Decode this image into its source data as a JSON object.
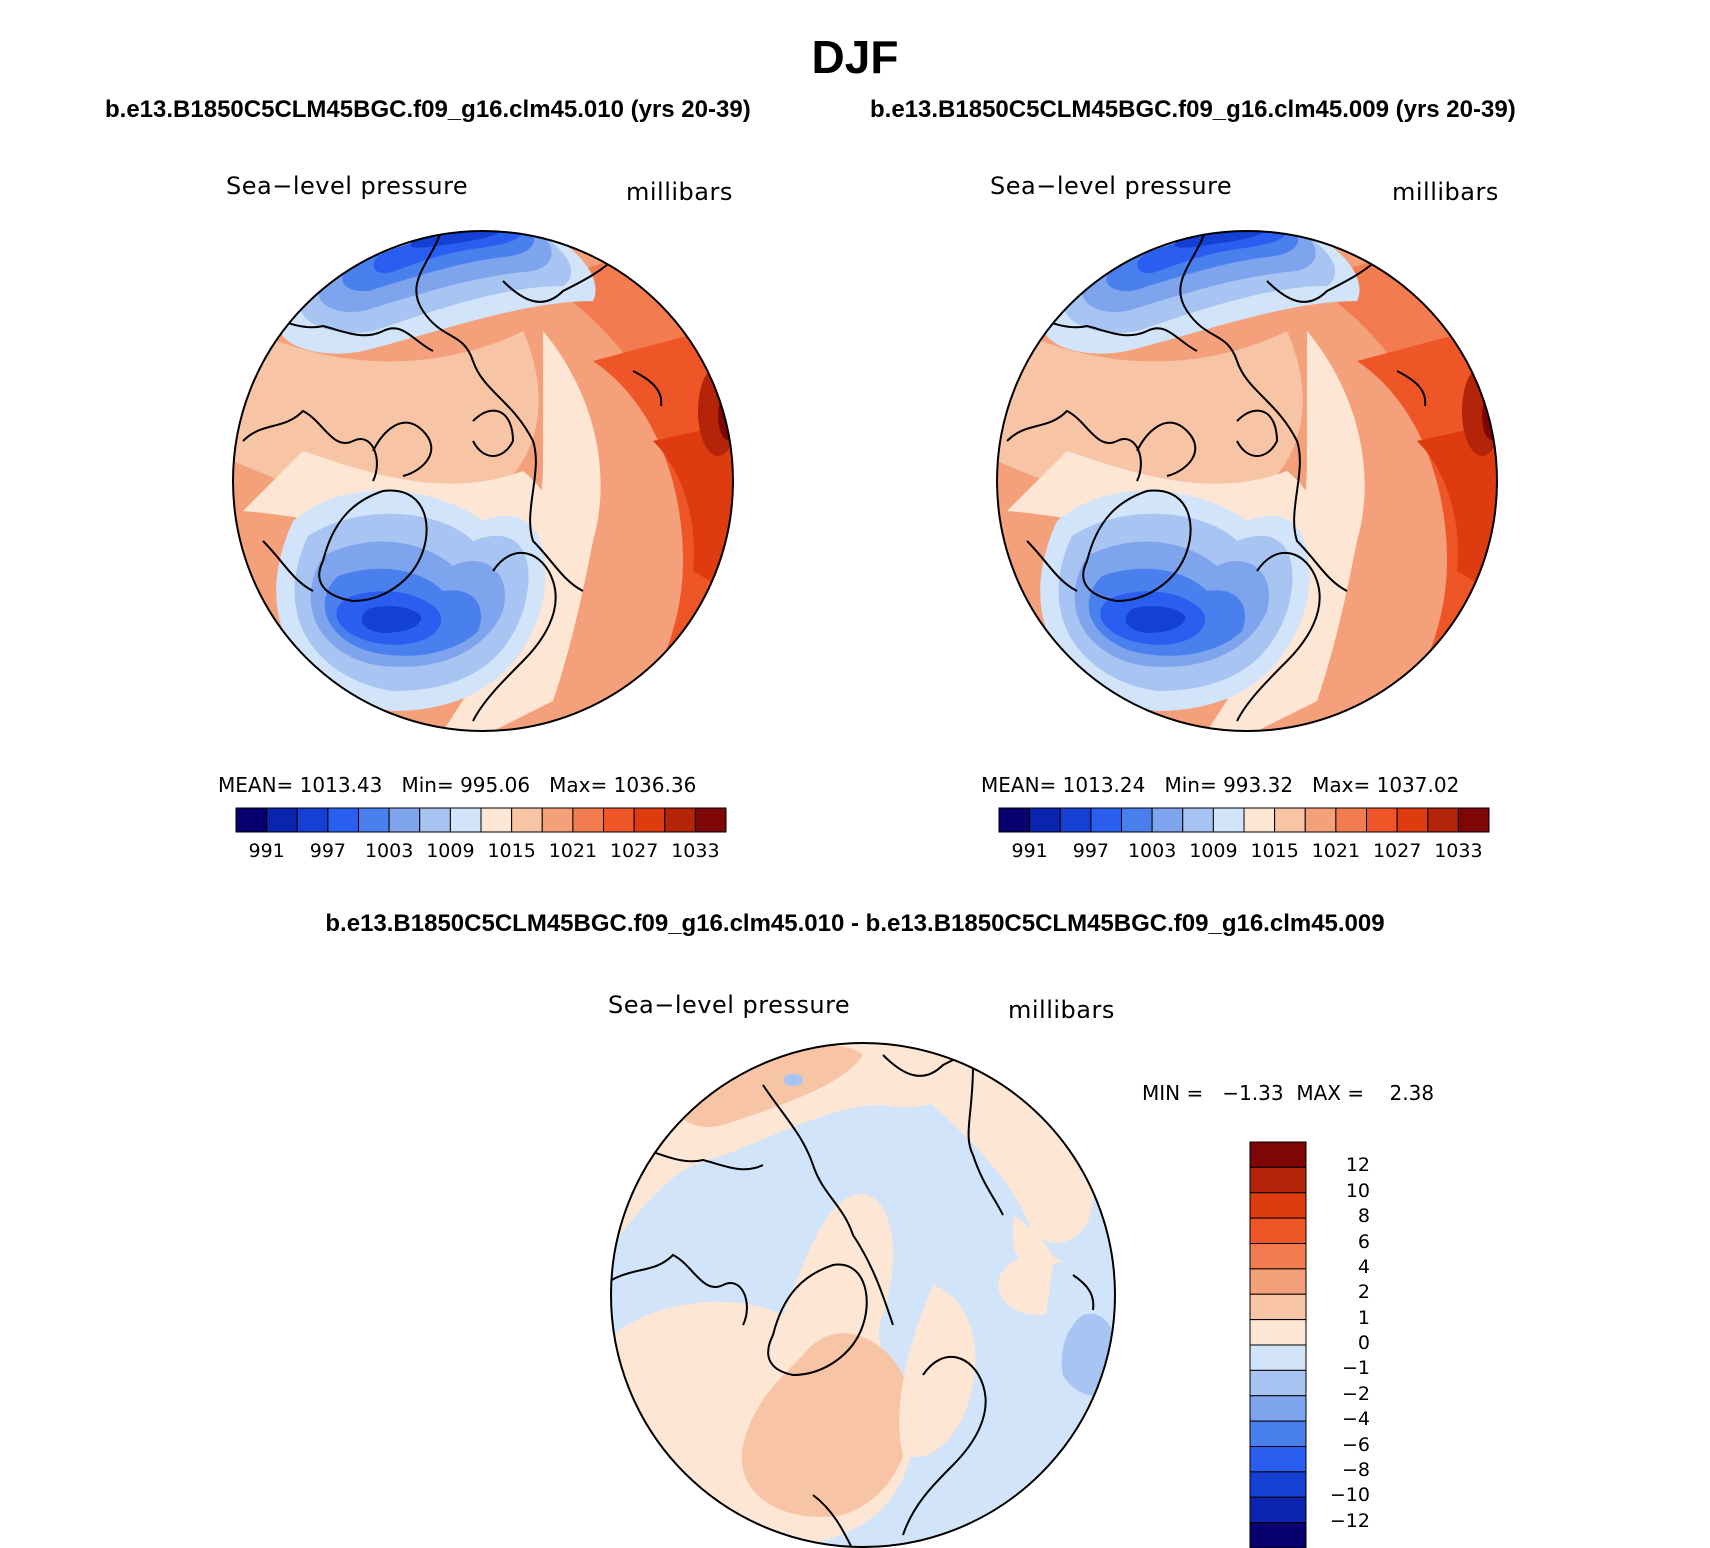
{
  "header": {
    "title": "DJF",
    "case_left": "b.e13.B1850C5CLM45BGC.f09_g16.clm45.010 (yrs 20-39)",
    "case_right": "b.e13.B1850C5CLM45BGC.f09_g16.clm45.009 (yrs 20-39)",
    "diff_title": "b.e13.B1850C5CLM45BGC.f09_g16.clm45.010 - b.e13.B1850C5CLM45BGC.f09_g16.clm45.009"
  },
  "panel_left": {
    "variable": "Sea−level pressure",
    "units": "millibars",
    "mean_label": "MEAN=",
    "mean_value": "1013.43",
    "min_label": "Min=",
    "min_value": "995.06",
    "max_label": "Max=",
    "max_value": "1036.36"
  },
  "panel_right": {
    "variable": "Sea−level pressure",
    "units": "millibars",
    "mean_label": "MEAN=",
    "mean_value": "1013.24",
    "min_label": "Min=",
    "min_value": "993.32",
    "max_label": "Max=",
    "max_value": "1037.02"
  },
  "panel_diff": {
    "variable": "Sea−level pressure",
    "units": "millibars",
    "min_label": "MIN =",
    "min_value": "−1.33",
    "max_label": "MAX =",
    "max_value": "2.38"
  },
  "colorbar_abs": {
    "colors": [
      "#08006e",
      "#0a24b0",
      "#1440d4",
      "#2a5ef0",
      "#4a80ee",
      "#7ea4ee",
      "#a8c4f2",
      "#d2e4fa",
      "#fde6d4",
      "#f8c4a6",
      "#f4a07a",
      "#f27c50",
      "#ee5628",
      "#de3c10",
      "#b42408",
      "#7e0606"
    ],
    "tick_labels": [
      "991",
      "997",
      "1003",
      "1009",
      "1015",
      "1021",
      "1027",
      "1033"
    ]
  },
  "colorbar_diff": {
    "colors": [
      "#08006e",
      "#0a24b0",
      "#1440d4",
      "#2a5ef0",
      "#4a80ee",
      "#7ea4ee",
      "#a8c4f2",
      "#d2e4fa",
      "#fde6d4",
      "#f8c4a6",
      "#f4a07a",
      "#f27c50",
      "#ee5628",
      "#de3c10",
      "#b42408",
      "#7e0606"
    ],
    "tick_labels": [
      "−12",
      "−10",
      "−8",
      "−6",
      "−4",
      "−2",
      "−1",
      "0",
      "1",
      "2",
      "4",
      "6",
      "8",
      "10",
      "12"
    ]
  }
}
